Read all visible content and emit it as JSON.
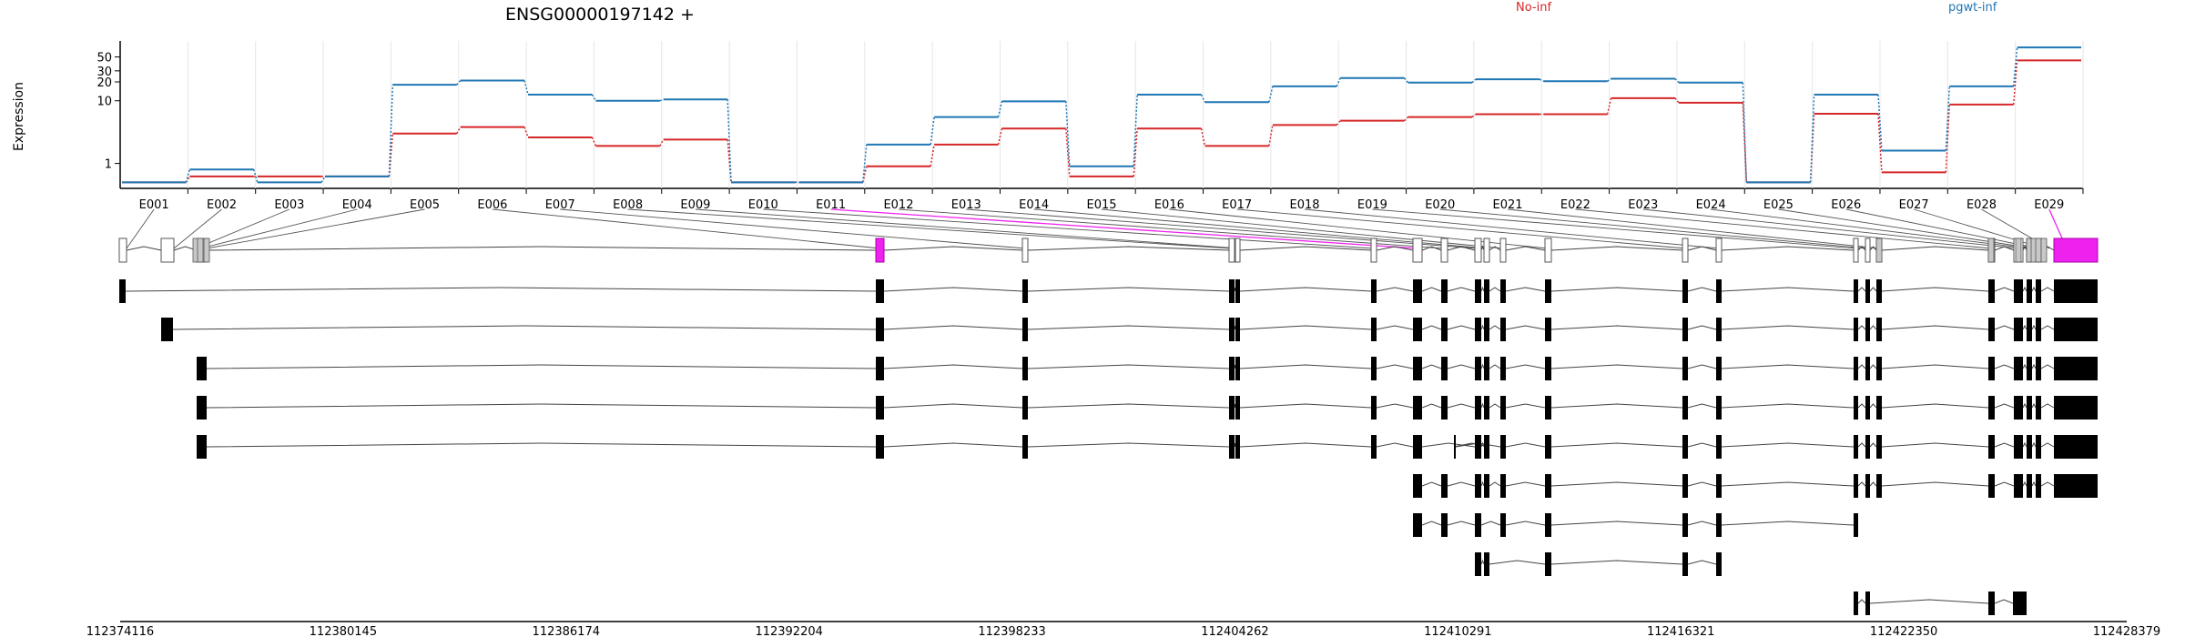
{
  "chart_data": {
    "type": "line",
    "title": "ENSG00000197142 +",
    "ylabel": "Expression",
    "yscale": "log",
    "ylim": [
      0.4,
      90
    ],
    "yticks": [
      {
        "value": 1,
        "label": "1"
      },
      {
        "value": 10,
        "label": "10"
      },
      {
        "value": 20,
        "label": "20"
      },
      {
        "value": 30,
        "label": "30"
      },
      {
        "value": 50,
        "label": "50"
      }
    ],
    "legend_position": "top",
    "categories": [
      "E001",
      "E002",
      "E003",
      "E004",
      "E005",
      "E006",
      "E007",
      "E008",
      "E009",
      "E010",
      "E011",
      "E012",
      "E013",
      "E014",
      "E015",
      "E016",
      "E017",
      "E018",
      "E019",
      "E020",
      "E021",
      "E022",
      "E023",
      "E024",
      "E025",
      "E026",
      "E027",
      "E028",
      "E029"
    ],
    "series": [
      {
        "name": "No-inf",
        "color": "#d62728",
        "values": [
          0.5,
          0.62,
          0.62,
          0.62,
          3.0,
          3.8,
          2.6,
          1.9,
          2.4,
          0.5,
          0.5,
          0.9,
          2.0,
          3.6,
          0.62,
          3.6,
          1.9,
          4.1,
          4.8,
          5.5,
          6.1,
          6.1,
          11.0,
          9.3,
          0.5,
          6.2,
          0.72,
          8.7,
          44.0
        ]
      },
      {
        "name": "pgwt-inf",
        "color": "#1f77b4",
        "values": [
          0.5,
          0.8,
          0.5,
          0.62,
          18.0,
          21.0,
          12.5,
          10.0,
          10.5,
          0.5,
          0.5,
          2.0,
          5.5,
          9.8,
          0.9,
          12.5,
          9.5,
          17.0,
          23.0,
          19.5,
          22.0,
          20.5,
          22.5,
          19.5,
          0.5,
          12.5,
          1.6,
          17.0,
          71.0
        ]
      }
    ],
    "genomic_axis": {
      "tick_labels": [
        "112374116",
        "112380145",
        "112386174",
        "112392204",
        "112398233",
        "112404262",
        "112410291",
        "112416321",
        "112422350",
        "112428379"
      ]
    }
  },
  "gene_model": {
    "exon_fill": "#ffffff",
    "shared_exon_fill": "#c8c8c8",
    "highlight_color": "#ee22ee",
    "highlight_exon": "E011",
    "highlight_exon_2": "E029"
  },
  "transcripts": [
    {
      "id": "t1"
    },
    {
      "id": "t2"
    },
    {
      "id": "t3"
    },
    {
      "id": "t4"
    },
    {
      "id": "t5"
    },
    {
      "id": "t6"
    },
    {
      "id": "t7"
    },
    {
      "id": "t8"
    },
    {
      "id": "t9"
    }
  ]
}
